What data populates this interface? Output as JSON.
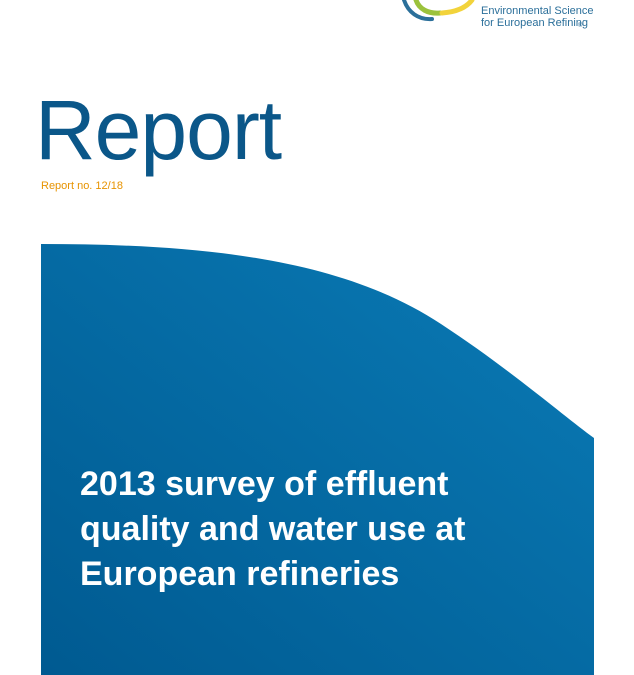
{
  "header": {
    "logo_icon": "concawe-logo-icon",
    "tagline": [
      "Environmental Science",
      "for European Refining"
    ],
    "registered_mark": "®"
  },
  "report": {
    "label": "Report",
    "number": "Report no. 12/18"
  },
  "cover": {
    "title_lines": [
      "2013 survey of effluent",
      "quality and water use at",
      "European refineries"
    ]
  },
  "colors": {
    "brand_blue": "#0b5789",
    "panel_blue_dark": "#005a91",
    "panel_blue_light": "#0a7bb6",
    "accent_orange": "#e79300",
    "logo_green": "#9bc23c",
    "logo_yellow": "#f2d33b"
  }
}
